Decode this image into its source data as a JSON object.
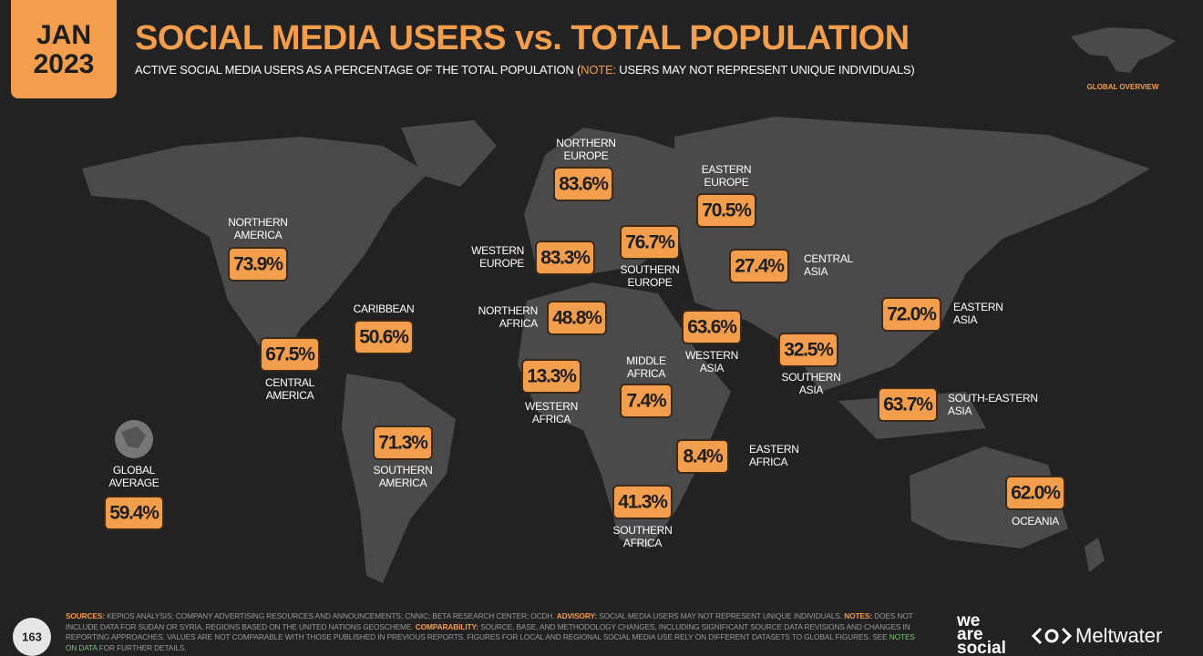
{
  "header": {
    "month": "JAN",
    "year": "2023",
    "title": "SOCIAL MEDIA USERS vs. TOTAL POPULATION",
    "subtitle": [
      "ACTIVE SOCIAL MEDIA USERS AS A PERCENTAGE OF THE TOTAL POPULATION (",
      "NOTE:",
      " USERS MAY NOT REPRESENT UNIQUE INDIVIDUALS)"
    ],
    "badge": "GLOBAL OVERVIEW"
  },
  "regions": [
    {
      "name": [
        "NORTHERN",
        "EUROPE"
      ],
      "value": "83.6%"
    },
    {
      "name": [
        "EASTERN",
        "EUROPE"
      ],
      "value": "70.5%"
    },
    {
      "name": [
        "NORTHERN",
        "AMERICA"
      ],
      "value": "73.9%"
    },
    {
      "name": [
        "WESTERN",
        "EUROPE"
      ],
      "value": "83.3%"
    },
    {
      "name": [
        "SOUTHERN",
        "EUROPE"
      ],
      "value": "76.7%"
    },
    {
      "name": [
        "CENTRAL",
        "ASIA"
      ],
      "value": "27.4%"
    },
    {
      "name": [
        "CARIBBEAN"
      ],
      "value": "50.6%"
    },
    {
      "name": [
        "NORTHERN",
        "AFRICA"
      ],
      "value": "48.8%"
    },
    {
      "name": [
        "WESTERN",
        "ASIA"
      ],
      "value": "63.6%"
    },
    {
      "name": [
        "EASTERN",
        "ASIA"
      ],
      "value": "72.0%"
    },
    {
      "name": [
        "CENTRAL",
        "AMERICA"
      ],
      "value": "67.5%"
    },
    {
      "name": [
        "SOUTHERN",
        "ASIA"
      ],
      "value": "32.5%"
    },
    {
      "name": [
        "WESTERN",
        "AFRICA"
      ],
      "value": "13.3%"
    },
    {
      "name": [
        "MIDDLE",
        "AFRICA"
      ],
      "value": "7.4%"
    },
    {
      "name": [
        "SOUTH-EASTERN",
        "ASIA"
      ],
      "value": "63.7%"
    },
    {
      "name": [
        "SOUTHERN",
        "AMERICA"
      ],
      "value": "71.3%"
    },
    {
      "name": [
        "EASTERN",
        "AFRICA"
      ],
      "value": "8.4%"
    },
    {
      "name": [
        "SOUTHERN",
        "AFRICA"
      ],
      "value": "41.3%"
    },
    {
      "name": [
        "OCEANIA"
      ],
      "value": "62.0%"
    },
    {
      "name": [
        "GLOBAL",
        "AVERAGE"
      ],
      "value": "59.4%"
    }
  ],
  "footer": {
    "page": "163",
    "parts": [
      "SOURCES:",
      " KEPIOS ANALYSIS; COMPANY ADVERTISING RESOURCES AND ANNOUNCEMENTS; CNNIC; BETA RESEARCH CENTER; OCDH. ",
      "ADVISORY:",
      " SOCIAL MEDIA USERS MAY NOT REPRESENT UNIQUE INDIVIDUALS. ",
      "NOTES:",
      " DOES NOT INCLUDE DATA FOR SUDAN OR SYRIA. REGIONS BASED ON THE UNITED NATIONS GEOSCHEME. ",
      "COMPARABILITY:",
      " SOURCE, BASE, AND METHODOLOGY CHANGES, INCLUDING SIGNIFICANT SOURCE DATA REVISIONS AND CHANGES IN REPORTING APPROACHES. VALUES ARE NOT COMPARABLE WITH THOSE PUBLISHED IN PREVIOUS REPORTS. FIGURES FOR LOCAL AND REGIONAL SOCIAL MEDIA USE RELY ON DIFFERENT DATASETS TO GLOBAL FIGURES. SEE ",
      "NOTES ON DATA",
      " FOR FURTHER DETAILS."
    ],
    "logo_lines": [
      "we",
      "are",
      "social"
    ],
    "brand": "Meltwater"
  }
}
